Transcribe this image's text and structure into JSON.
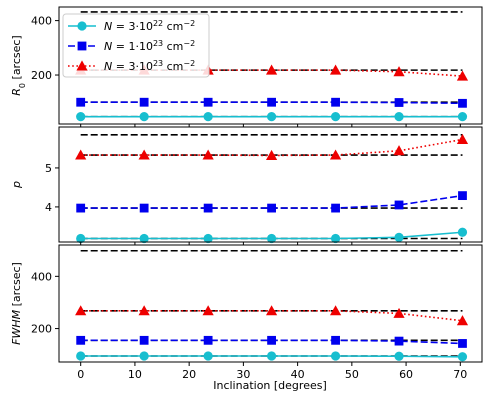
{
  "chart_data": {
    "type": "line",
    "x": [
      0,
      11.7,
      23.5,
      35.2,
      47,
      58.7,
      70.4
    ],
    "xlabel": "Inclination [degrees]",
    "xlim": [
      -4,
      74
    ],
    "xticks": [
      "0",
      "10",
      "20",
      "30",
      "40",
      "50",
      "60",
      "70"
    ],
    "xtick_values": [
      0,
      10,
      20,
      30,
      40,
      50,
      60,
      70
    ],
    "legend": {
      "placement": "top-left",
      "entries": [
        {
          "label_main": "N = 3·10",
          "label_exp": "22",
          "label_unit": " cm",
          "label_unit_exp": "−2",
          "color": "#17becf",
          "marker": "circle",
          "dash": "solid"
        },
        {
          "label_main": "N = 1·10",
          "label_exp": "23",
          "label_unit": " cm",
          "label_unit_exp": "−2",
          "color": "#0000ee",
          "marker": "square",
          "dash": "dashed"
        },
        {
          "label_main": "N = 3·10",
          "label_exp": "23",
          "label_unit": " cm",
          "label_unit_exp": "−2",
          "color": "#ee0000",
          "marker": "triangle",
          "dash": "dotted"
        }
      ]
    },
    "panels": [
      {
        "ylabel_main": "R",
        "ylabel_sub": "0",
        "ylabel_rest": " [arcsec]",
        "ylim": [
          20,
          450
        ],
        "yticks": [
          "200",
          "400"
        ],
        "ytick_values": [
          200,
          400
        ],
        "reference_lines": [
          432,
          218,
          100,
          47
        ],
        "series": [
          {
            "color": "#17becf",
            "marker": "circle",
            "dash": "solid",
            "values": [
              47,
              47,
              47,
              47,
              47,
              47,
              47
            ]
          },
          {
            "color": "#0000ee",
            "marker": "square",
            "dash": "dashed",
            "values": [
              100,
              100,
              100,
              100,
              100,
              99,
              96
            ]
          },
          {
            "color": "#ee0000",
            "marker": "triangle",
            "dash": "dotted",
            "values": [
              218,
              218,
              218,
              218,
              218,
              212,
              196
            ]
          }
        ]
      },
      {
        "ylabel_main": "p",
        "ylabel_sub": "",
        "ylabel_rest": "",
        "ylim": [
          3.1,
          6.05
        ],
        "yticks": [
          "4",
          "5"
        ],
        "ytick_values": [
          4,
          5
        ],
        "reference_lines": [
          5.85,
          5.33,
          3.97,
          3.19
        ],
        "series": [
          {
            "color": "#17becf",
            "marker": "circle",
            "dash": "solid",
            "values": [
              3.19,
              3.19,
              3.19,
              3.19,
              3.19,
              3.22,
              3.35
            ]
          },
          {
            "color": "#0000ee",
            "marker": "square",
            "dash": "dashed",
            "values": [
              3.97,
              3.97,
              3.97,
              3.97,
              3.97,
              4.05,
              4.29
            ]
          },
          {
            "color": "#ee0000",
            "marker": "triangle",
            "dash": "dotted",
            "values": [
              5.33,
              5.33,
              5.33,
              5.32,
              5.33,
              5.44,
              5.73
            ]
          }
        ]
      },
      {
        "ylabel_main": "FWHM",
        "ylabel_sub": "",
        "ylabel_rest": " [arcsec]",
        "ylim": [
          72,
          520
        ],
        "yticks": [
          "200",
          "400"
        ],
        "ytick_values": [
          200,
          400
        ],
        "reference_lines": [
          498,
          268,
          155,
          95
        ],
        "series": [
          {
            "color": "#17becf",
            "marker": "circle",
            "dash": "solid",
            "values": [
              95,
              95,
              95,
              95,
              95,
              94,
              92
            ]
          },
          {
            "color": "#0000ee",
            "marker": "square",
            "dash": "dashed",
            "values": [
              155,
              155,
              155,
              155,
              155,
              152,
              143
            ]
          },
          {
            "color": "#ee0000",
            "marker": "triangle",
            "dash": "dotted",
            "values": [
              268,
              268,
              268,
              268,
              268,
              258,
              230
            ]
          }
        ]
      }
    ]
  }
}
